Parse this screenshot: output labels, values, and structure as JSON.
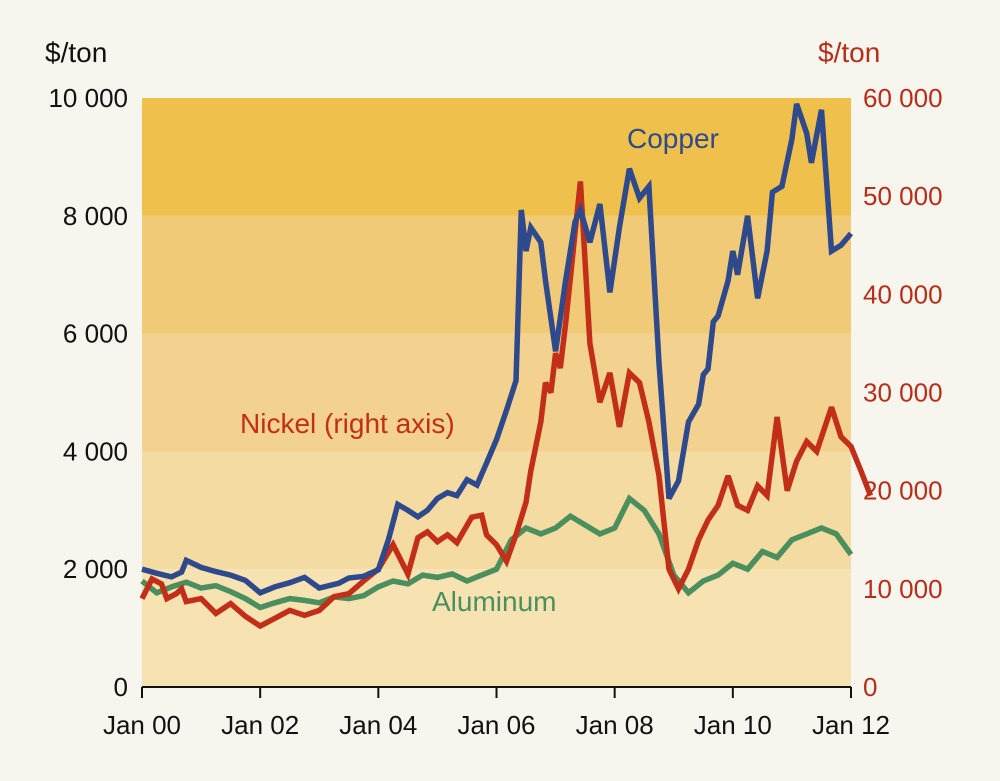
{
  "chart_data": {
    "type": "line",
    "title": "",
    "left_axis": {
      "unit": "$/ton",
      "ylim": [
        0,
        10000
      ],
      "ticks": [
        "0",
        "2 000",
        "4 000",
        "6 000",
        "8 000",
        "10 000"
      ]
    },
    "right_axis": {
      "unit": "$/ton",
      "ylim": [
        0,
        60000
      ],
      "ticks": [
        "0",
        "10 000",
        "20 000",
        "30 000",
        "40 000",
        "50 000",
        "60 000"
      ]
    },
    "x_axis": {
      "range": [
        2000,
        2012
      ],
      "ticks": [
        "Jan 00",
        "Jan 02",
        "Jan 04",
        "Jan 06",
        "Jan 08",
        "Jan 10",
        "Jan 12"
      ]
    },
    "bands": [
      {
        "from": 0,
        "to": 2000,
        "color": "#f7e3b2"
      },
      {
        "from": 2000,
        "to": 4000,
        "color": "#f4dba2"
      },
      {
        "from": 4000,
        "to": 6000,
        "color": "#f2d28e"
      },
      {
        "from": 6000,
        "to": 8000,
        "color": "#f0ca77"
      },
      {
        "from": 8000,
        "to": 10000,
        "color": "#efc14c"
      }
    ],
    "series": [
      {
        "name": "Copper",
        "axis": "left",
        "color": "#2e4a8c",
        "label": "Copper",
        "points": [
          [
            2000.0,
            2000
          ],
          [
            2000.25,
            1930
          ],
          [
            2000.5,
            1870
          ],
          [
            2000.67,
            1950
          ],
          [
            2000.75,
            2150
          ],
          [
            2001.0,
            2030
          ],
          [
            2001.25,
            1960
          ],
          [
            2001.5,
            1900
          ],
          [
            2001.75,
            1810
          ],
          [
            2002.0,
            1600
          ],
          [
            2002.25,
            1700
          ],
          [
            2002.5,
            1770
          ],
          [
            2002.75,
            1860
          ],
          [
            2003.0,
            1680
          ],
          [
            2003.33,
            1760
          ],
          [
            2003.5,
            1850
          ],
          [
            2003.75,
            1880
          ],
          [
            2004.0,
            1990
          ],
          [
            2004.17,
            2500
          ],
          [
            2004.33,
            3100
          ],
          [
            2004.5,
            3000
          ],
          [
            2004.67,
            2890
          ],
          [
            2004.83,
            3000
          ],
          [
            2005.0,
            3200
          ],
          [
            2005.17,
            3300
          ],
          [
            2005.33,
            3250
          ],
          [
            2005.5,
            3520
          ],
          [
            2005.67,
            3430
          ],
          [
            2005.83,
            3800
          ],
          [
            2006.0,
            4200
          ],
          [
            2006.17,
            4700
          ],
          [
            2006.33,
            5200
          ],
          [
            2006.42,
            8100
          ],
          [
            2006.5,
            7400
          ],
          [
            2006.58,
            7800
          ],
          [
            2006.75,
            7550
          ],
          [
            2006.83,
            6900
          ],
          [
            2007.0,
            5700
          ],
          [
            2007.17,
            6900
          ],
          [
            2007.33,
            7900
          ],
          [
            2007.42,
            8100
          ],
          [
            2007.58,
            7550
          ],
          [
            2007.75,
            8200
          ],
          [
            2007.92,
            6700
          ],
          [
            2008.08,
            7800
          ],
          [
            2008.25,
            8800
          ],
          [
            2008.42,
            8300
          ],
          [
            2008.58,
            8500
          ],
          [
            2008.75,
            5500
          ],
          [
            2008.92,
            3200
          ],
          [
            2009.08,
            3500
          ],
          [
            2009.25,
            4500
          ],
          [
            2009.42,
            4800
          ],
          [
            2009.5,
            5300
          ],
          [
            2009.58,
            5400
          ],
          [
            2009.67,
            6200
          ],
          [
            2009.75,
            6300
          ],
          [
            2009.92,
            6900
          ],
          [
            2010.0,
            7400
          ],
          [
            2010.08,
            7000
          ],
          [
            2010.25,
            8000
          ],
          [
            2010.42,
            6600
          ],
          [
            2010.58,
            7400
          ],
          [
            2010.67,
            8400
          ],
          [
            2010.83,
            8500
          ],
          [
            2011.0,
            9300
          ],
          [
            2011.08,
            9900
          ],
          [
            2011.25,
            9400
          ],
          [
            2011.33,
            8900
          ],
          [
            2011.5,
            9800
          ],
          [
            2011.67,
            7400
          ],
          [
            2011.83,
            7500
          ],
          [
            2012.0,
            7700
          ]
        ]
      },
      {
        "name": "Nickel",
        "axis": "right",
        "color": "#c32e18",
        "label": "Nickel (right axis)",
        "points": [
          [
            2000.0,
            9000
          ],
          [
            2000.17,
            11000
          ],
          [
            2000.33,
            10500
          ],
          [
            2000.42,
            9000
          ],
          [
            2000.58,
            9500
          ],
          [
            2000.67,
            10000
          ],
          [
            2000.75,
            8700
          ],
          [
            2001.0,
            9000
          ],
          [
            2001.25,
            7500
          ],
          [
            2001.5,
            8500
          ],
          [
            2001.75,
            7200
          ],
          [
            2002.0,
            6200
          ],
          [
            2002.25,
            7000
          ],
          [
            2002.5,
            7800
          ],
          [
            2002.75,
            7300
          ],
          [
            2003.0,
            7800
          ],
          [
            2003.25,
            9200
          ],
          [
            2003.5,
            9500
          ],
          [
            2003.75,
            10800
          ],
          [
            2004.0,
            12000
          ],
          [
            2004.25,
            14500
          ],
          [
            2004.5,
            11500
          ],
          [
            2004.67,
            15200
          ],
          [
            2004.83,
            15800
          ],
          [
            2005.0,
            14800
          ],
          [
            2005.17,
            15500
          ],
          [
            2005.33,
            14700
          ],
          [
            2005.58,
            17300
          ],
          [
            2005.75,
            17500
          ],
          [
            2005.83,
            15500
          ],
          [
            2006.0,
            14500
          ],
          [
            2006.17,
            12800
          ],
          [
            2006.33,
            15500
          ],
          [
            2006.5,
            18800
          ],
          [
            2006.58,
            22000
          ],
          [
            2006.75,
            27000
          ],
          [
            2006.83,
            31000
          ],
          [
            2006.92,
            30000
          ],
          [
            2007.0,
            34000
          ],
          [
            2007.08,
            32500
          ],
          [
            2007.17,
            37000
          ],
          [
            2007.42,
            51500
          ],
          [
            2007.58,
            35000
          ],
          [
            2007.75,
            29000
          ],
          [
            2007.92,
            32000
          ],
          [
            2008.08,
            26500
          ],
          [
            2008.25,
            32000
          ],
          [
            2008.42,
            31000
          ],
          [
            2008.58,
            27000
          ],
          [
            2008.75,
            21500
          ],
          [
            2008.92,
            12000
          ],
          [
            2009.08,
            10000
          ],
          [
            2009.25,
            12000
          ],
          [
            2009.42,
            15000
          ],
          [
            2009.58,
            17000
          ],
          [
            2009.75,
            18500
          ],
          [
            2009.92,
            21500
          ],
          [
            2010.08,
            18500
          ],
          [
            2010.25,
            18000
          ],
          [
            2010.42,
            20500
          ],
          [
            2010.58,
            19500
          ],
          [
            2010.75,
            27500
          ],
          [
            2010.92,
            20000
          ],
          [
            2011.08,
            23000
          ],
          [
            2011.25,
            25000
          ],
          [
            2011.42,
            24000
          ],
          [
            2011.67,
            28500
          ],
          [
            2011.83,
            25500
          ],
          [
            2012.0,
            24500
          ],
          [
            2012.17,
            22000
          ],
          [
            2012.33,
            19500
          ]
        ]
      },
      {
        "name": "Aluminum",
        "axis": "left",
        "color": "#4b8f5e",
        "label": "Aluminum",
        "points": [
          [
            2000.0,
            1800
          ],
          [
            2000.25,
            1600
          ],
          [
            2000.5,
            1700
          ],
          [
            2000.75,
            1780
          ],
          [
            2001.0,
            1680
          ],
          [
            2001.25,
            1720
          ],
          [
            2001.5,
            1620
          ],
          [
            2001.75,
            1500
          ],
          [
            2002.0,
            1350
          ],
          [
            2002.25,
            1430
          ],
          [
            2002.5,
            1500
          ],
          [
            2002.75,
            1470
          ],
          [
            2003.0,
            1430
          ],
          [
            2003.25,
            1530
          ],
          [
            2003.5,
            1500
          ],
          [
            2003.75,
            1550
          ],
          [
            2004.0,
            1700
          ],
          [
            2004.25,
            1800
          ],
          [
            2004.5,
            1750
          ],
          [
            2004.75,
            1900
          ],
          [
            2005.0,
            1860
          ],
          [
            2005.25,
            1920
          ],
          [
            2005.5,
            1800
          ],
          [
            2005.75,
            1900
          ],
          [
            2006.0,
            2000
          ],
          [
            2006.25,
            2500
          ],
          [
            2006.5,
            2700
          ],
          [
            2006.75,
            2600
          ],
          [
            2007.0,
            2700
          ],
          [
            2007.25,
            2900
          ],
          [
            2007.5,
            2750
          ],
          [
            2007.75,
            2600
          ],
          [
            2008.0,
            2700
          ],
          [
            2008.25,
            3200
          ],
          [
            2008.5,
            3000
          ],
          [
            2008.75,
            2600
          ],
          [
            2009.0,
            1900
          ],
          [
            2009.25,
            1600
          ],
          [
            2009.5,
            1800
          ],
          [
            2009.75,
            1900
          ],
          [
            2010.0,
            2100
          ],
          [
            2010.25,
            2000
          ],
          [
            2010.5,
            2300
          ],
          [
            2010.75,
            2200
          ],
          [
            2011.0,
            2500
          ],
          [
            2011.25,
            2600
          ],
          [
            2011.5,
            2700
          ],
          [
            2011.75,
            2600
          ],
          [
            2012.0,
            2250
          ]
        ]
      }
    ]
  }
}
